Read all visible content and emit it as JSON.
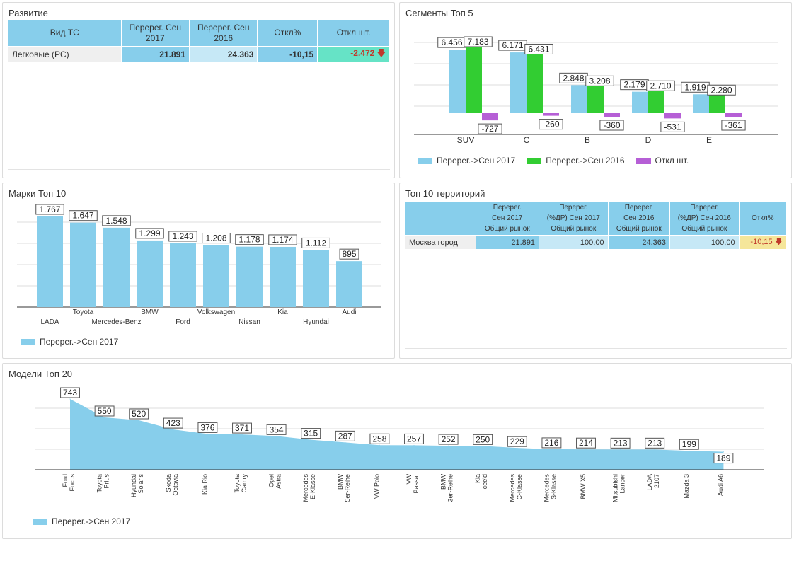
{
  "colors": {
    "s2017": "#87ceeb",
    "s2016": "#32cd32",
    "diff": "#b65fd6",
    "neg_diff_bg": "#66e3c6",
    "neg_pct_bg": "#f5e69a",
    "down_arrow": "#c0392b"
  },
  "razvitie": {
    "title": "Развитие",
    "headers": [
      "Вид ТС",
      "Перерег. Сен 2017",
      "Перерег. Сен 2016",
      "Откл%",
      "Откл шт."
    ],
    "row": {
      "label": "Легковые (PC)",
      "v2017": "21.891",
      "v2016": "24.363",
      "pct": "-10,15",
      "diff": "-2.472",
      "arrow_icon": "down-arrow-icon"
    }
  },
  "segments": {
    "title": "Сегменты Топ 5",
    "chart_data": {
      "type": "bar",
      "categories": [
        "SUV",
        "C",
        "B",
        "D",
        "E"
      ],
      "series": [
        {
          "name": "Перерег.->Сен 2017",
          "values": [
            6456,
            6171,
            2848,
            2179,
            1919
          ],
          "labels": [
            "6.456",
            "6.171",
            "2.848",
            "2.179",
            "1.919"
          ]
        },
        {
          "name": "Перерег.->Сен 2016",
          "values": [
            7183,
            6431,
            3208,
            2710,
            2280
          ],
          "labels": [
            "7.183",
            "6.431",
            "3.208",
            "2.710",
            "2.280"
          ]
        },
        {
          "name": "Откл шт.",
          "values": [
            -727,
            -260,
            -360,
            -531,
            -361
          ],
          "labels": [
            "-727",
            "-260",
            "-360",
            "-531",
            "-361"
          ]
        }
      ],
      "legend": "bottom-left",
      "grid": true
    }
  },
  "brands": {
    "title": "Марки Топ 10",
    "chart_data": {
      "type": "bar",
      "categories": [
        "LADA",
        "Toyota",
        "Mercedes-Benz",
        "BMW",
        "Ford",
        "Volkswagen",
        "Nissan",
        "Kia",
        "Hyundai",
        "Audi"
      ],
      "series": [
        {
          "name": "Перерег.->Сен 2017",
          "values": [
            1767,
            1647,
            1548,
            1299,
            1243,
            1208,
            1178,
            1174,
            1112,
            895
          ],
          "labels": [
            "1.767",
            "1.647",
            "1.548",
            "1.299",
            "1.243",
            "1.208",
            "1.178",
            "1.174",
            "1.112",
            "895"
          ]
        }
      ],
      "legend": "bottom-left",
      "grid": true
    }
  },
  "territories": {
    "title": "Топ 10 территорий",
    "headers": [
      [
        "Перерег.",
        "Сен 2017",
        "Общий рынок"
      ],
      [
        "Перерег.",
        "(%ДР) Сен 2017",
        "Общий рынок"
      ],
      [
        "Перерег.",
        "Сен 2016",
        "Общий рынок"
      ],
      [
        "Перерег.",
        "(%ДР) Сен 2016",
        "Общий рынок"
      ],
      [
        "Откл%"
      ]
    ],
    "row": {
      "label": "Москва город",
      "c1": "21.891",
      "c2": "100,00",
      "c3": "24.363",
      "c4": "100,00",
      "c5": "-10,15",
      "arrow_icon": "down-arrow-icon"
    }
  },
  "models": {
    "title": "Модели Топ 20",
    "chart_data": {
      "type": "area",
      "categories": [
        [
          "Ford",
          "Focus"
        ],
        [
          "Toyota",
          "Prius"
        ],
        [
          "Hyundai",
          "Solaris"
        ],
        [
          "Skoda",
          "Octavia"
        ],
        [
          "Kia Rio"
        ],
        [
          "Toyota",
          "Camry"
        ],
        [
          "Opel",
          "Astra"
        ],
        [
          "Mercedes",
          "E-Klasse"
        ],
        [
          "BMW",
          "5er-Reihe"
        ],
        [
          "VW Polo"
        ],
        [
          "VW",
          "Passat"
        ],
        [
          "BMW",
          "3er-Reihe"
        ],
        [
          "Kia",
          "cee'd"
        ],
        [
          "Mercedes",
          "C-Klasse"
        ],
        [
          "Mercedes",
          "S-Klasse"
        ],
        [
          "BMW X5"
        ],
        [
          "Mitsubishi",
          "Lancer"
        ],
        [
          "LADA",
          "2107"
        ],
        [
          "Mazda 3"
        ],
        [
          "Audi A6"
        ]
      ],
      "series": [
        {
          "name": "Перерег.->Сен 2017",
          "values": [
            743,
            550,
            520,
            423,
            376,
            371,
            354,
            315,
            287,
            258,
            257,
            252,
            250,
            229,
            216,
            214,
            213,
            213,
            199,
            189
          ]
        }
      ],
      "legend": "bottom-left",
      "grid": true
    }
  }
}
